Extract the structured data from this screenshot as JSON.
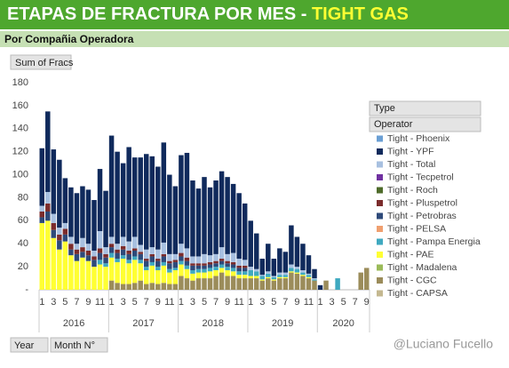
{
  "chart_data": {
    "type": "stacked-bar",
    "title": "ETAPAS DE FRACTURA POR MES - ",
    "title_highlight": "TIGHT GAS",
    "subtitle": "Por Compañia Operadora",
    "value_field": "Sum of Fracs",
    "legend_header": "Type",
    "legend_field": "Operator",
    "axis_fields": [
      "Year",
      "Month N°"
    ],
    "watermark": "@Luciano Fucello",
    "ylim": [
      0,
      180
    ],
    "yticks": [
      {
        "value": 0,
        "label": "-"
      },
      20,
      40,
      60,
      80,
      100,
      120,
      140,
      160,
      180
    ],
    "groups": [
      {
        "label": "2016",
        "count": 12
      },
      {
        "label": "2017",
        "count": 12
      },
      {
        "label": "2018",
        "count": 12
      },
      {
        "label": "2019",
        "count": 12
      },
      {
        "label": "2020",
        "count": 9
      }
    ],
    "categories": [
      1,
      null,
      3,
      null,
      5,
      null,
      7,
      null,
      9,
      null,
      11,
      null,
      1,
      null,
      3,
      null,
      5,
      null,
      7,
      null,
      9,
      null,
      11,
      null,
      1,
      null,
      3,
      null,
      5,
      null,
      7,
      null,
      9,
      null,
      11,
      null,
      1,
      null,
      3,
      null,
      5,
      null,
      7,
      null,
      9,
      null,
      11,
      null,
      1,
      null,
      3,
      null,
      5,
      null,
      7,
      null,
      9
    ],
    "series": [
      {
        "name": "Tight - Phoenix",
        "color": "#6a9fd4",
        "values": [
          0,
          0,
          0,
          0,
          0,
          0,
          0,
          0,
          0,
          0,
          0,
          0,
          0,
          0,
          0,
          0,
          0,
          0,
          0,
          0,
          0,
          0,
          0,
          0,
          0,
          0,
          0,
          0,
          0,
          0,
          0,
          0,
          0,
          0,
          0,
          0,
          0,
          0,
          0,
          0,
          0,
          0,
          0,
          0,
          0,
          0,
          0,
          0,
          0,
          0,
          0,
          0,
          0,
          0,
          0,
          0,
          0
        ]
      },
      {
        "name": "Tight - YPF",
        "color": "#102a5c",
        "values": [
          50,
          70,
          56,
          59,
          39,
          43,
          44,
          45,
          47,
          44,
          54,
          49,
          88,
          80,
          64,
          82,
          69,
          76,
          83,
          79,
          72,
          87,
          69,
          59,
          77,
          83,
          66,
          59,
          67,
          59,
          64,
          66,
          67,
          60,
          57,
          49,
          40,
          31,
          14,
          24,
          15,
          21,
          18,
          34,
          26,
          23,
          16,
          8,
          4,
          0,
          0,
          0,
          0,
          0,
          0,
          0,
          0
        ]
      },
      {
        "name": "Tight - Total",
        "color": "#a8c0e0",
        "values": [
          5,
          10,
          8,
          6,
          5,
          6,
          5,
          8,
          6,
          5,
          15,
          6,
          6,
          5,
          8,
          8,
          10,
          6,
          8,
          6,
          8,
          10,
          6,
          5,
          8,
          8,
          6,
          6,
          8,
          6,
          6,
          10,
          6,
          8,
          6,
          5,
          3,
          2,
          1,
          2,
          1,
          2,
          2,
          3,
          2,
          2,
          1,
          1,
          0,
          0,
          0,
          0,
          0,
          0,
          0,
          0,
          0
        ]
      },
      {
        "name": "Tight - Tecpetrol",
        "color": "#7030a0",
        "values": [
          0,
          0,
          0,
          0,
          0,
          0,
          0,
          0,
          0,
          0,
          0,
          0,
          0,
          0,
          0,
          0,
          0,
          0,
          0,
          0,
          0,
          0,
          0,
          0,
          0,
          0,
          0,
          0,
          0,
          0,
          0,
          0,
          0,
          0,
          0,
          0,
          0,
          0,
          0,
          0,
          0,
          0,
          0,
          0,
          0,
          0,
          0,
          0,
          0,
          0,
          0,
          0,
          0,
          0,
          0,
          0,
          0
        ]
      },
      {
        "name": "Tight - Roch",
        "color": "#4e6b2a",
        "values": [
          0,
          0,
          0,
          0,
          0,
          0,
          0,
          0,
          0,
          0,
          0,
          0,
          0,
          0,
          0,
          0,
          0,
          0,
          0,
          0,
          0,
          0,
          0,
          0,
          0,
          0,
          0,
          0,
          0,
          0,
          0,
          0,
          0,
          0,
          0,
          0,
          0,
          0,
          0,
          0,
          0,
          0,
          0,
          0,
          0,
          0,
          0,
          0,
          0,
          0,
          0,
          0,
          0,
          0,
          0,
          0,
          0
        ]
      },
      {
        "name": "Tight - Pluspetrol",
        "color": "#7b2c2c",
        "values": [
          5,
          7,
          6,
          5,
          5,
          5,
          4,
          4,
          4,
          3,
          4,
          3,
          3,
          3,
          3,
          3,
          2,
          2,
          2,
          2,
          2,
          2,
          2,
          2,
          3,
          3,
          2,
          2,
          2,
          2,
          2,
          2,
          2,
          2,
          2,
          2,
          0,
          0,
          0,
          0,
          0,
          0,
          0,
          0,
          0,
          0,
          0,
          0,
          0,
          0,
          0,
          0,
          0,
          0,
          0,
          0,
          0
        ]
      },
      {
        "name": "Tight - Petrobras",
        "color": "#2e4a7a",
        "values": [
          5,
          8,
          7,
          8,
          6,
          5,
          6,
          5,
          5,
          6,
          6,
          5,
          5,
          5,
          5,
          5,
          5,
          5,
          5,
          5,
          5,
          5,
          5,
          5,
          4,
          4,
          4,
          3,
          3,
          3,
          3,
          3,
          3,
          3,
          3,
          3,
          0,
          0,
          0,
          0,
          0,
          0,
          0,
          0,
          0,
          0,
          0,
          0,
          0,
          0,
          0,
          0,
          0,
          0,
          0,
          0,
          0
        ]
      },
      {
        "name": "Tight - PELSA",
        "color": "#f0a070",
        "values": [
          0,
          0,
          0,
          0,
          0,
          0,
          0,
          0,
          0,
          0,
          0,
          0,
          0,
          0,
          0,
          0,
          0,
          0,
          0,
          0,
          0,
          0,
          0,
          0,
          0,
          0,
          0,
          0,
          0,
          0,
          0,
          0,
          0,
          0,
          0,
          0,
          0,
          0,
          0,
          0,
          0,
          0,
          0,
          0,
          0,
          0,
          0,
          0,
          0,
          0,
          0,
          0,
          0,
          0,
          0,
          0,
          0
        ]
      },
      {
        "name": "Tight - Pampa Energia",
        "color": "#3fa9c0",
        "values": [
          0,
          0,
          0,
          0,
          0,
          0,
          0,
          0,
          0,
          0,
          4,
          3,
          4,
          3,
          3,
          3,
          3,
          3,
          3,
          3,
          3,
          3,
          3,
          2,
          3,
          3,
          3,
          3,
          3,
          3,
          3,
          3,
          3,
          3,
          3,
          3,
          5,
          4,
          3,
          3,
          2,
          2,
          2,
          3,
          3,
          2,
          2,
          1,
          0,
          0,
          0,
          10,
          0,
          0,
          0,
          0,
          0
        ]
      },
      {
        "name": "Tight - PAE",
        "color": "#ffff33",
        "values": [
          58,
          60,
          45,
          35,
          42,
          30,
          25,
          28,
          25,
          20,
          22,
          20,
          20,
          18,
          22,
          18,
          20,
          15,
          12,
          15,
          12,
          15,
          10,
          12,
          10,
          8,
          6,
          5,
          5,
          6,
          5,
          4,
          5,
          4,
          3,
          3,
          2,
          2,
          1,
          1,
          1,
          1,
          1,
          1,
          1,
          1,
          1,
          0,
          0,
          0,
          0,
          0,
          0,
          0,
          0,
          0,
          0
        ]
      },
      {
        "name": "Tight - Madalena",
        "color": "#9bbb59",
        "values": [
          0,
          0,
          0,
          0,
          0,
          0,
          0,
          0,
          0,
          0,
          0,
          0,
          0,
          0,
          0,
          0,
          0,
          0,
          0,
          0,
          0,
          0,
          0,
          0,
          0,
          0,
          0,
          0,
          0,
          0,
          0,
          0,
          0,
          0,
          0,
          0,
          0,
          0,
          0,
          0,
          0,
          0,
          0,
          0,
          0,
          0,
          0,
          0,
          0,
          0,
          0,
          0,
          0,
          0,
          0,
          0,
          0
        ]
      },
      {
        "name": "Tight - CGC",
        "color": "#9b8c5a",
        "values": [
          0,
          0,
          0,
          0,
          0,
          0,
          0,
          0,
          0,
          0,
          0,
          0,
          8,
          6,
          5,
          5,
          6,
          8,
          5,
          6,
          5,
          6,
          5,
          5,
          12,
          10,
          8,
          10,
          10,
          10,
          12,
          15,
          12,
          12,
          10,
          10,
          10,
          10,
          8,
          10,
          8,
          10,
          10,
          15,
          14,
          12,
          10,
          8,
          0,
          8,
          0,
          0,
          0,
          0,
          0,
          15,
          19
        ]
      },
      {
        "name": "Tight - CAPSA",
        "color": "#c4b890",
        "values": [
          0,
          0,
          0,
          0,
          0,
          0,
          0,
          0,
          0,
          0,
          0,
          0,
          0,
          0,
          0,
          0,
          0,
          0,
          0,
          0,
          0,
          0,
          0,
          0,
          0,
          0,
          0,
          0,
          0,
          0,
          0,
          0,
          0,
          0,
          0,
          0,
          0,
          0,
          0,
          0,
          0,
          0,
          0,
          0,
          0,
          0,
          0,
          0,
          0,
          0,
          0,
          0,
          0,
          0,
          0,
          0,
          0
        ]
      }
    ]
  }
}
